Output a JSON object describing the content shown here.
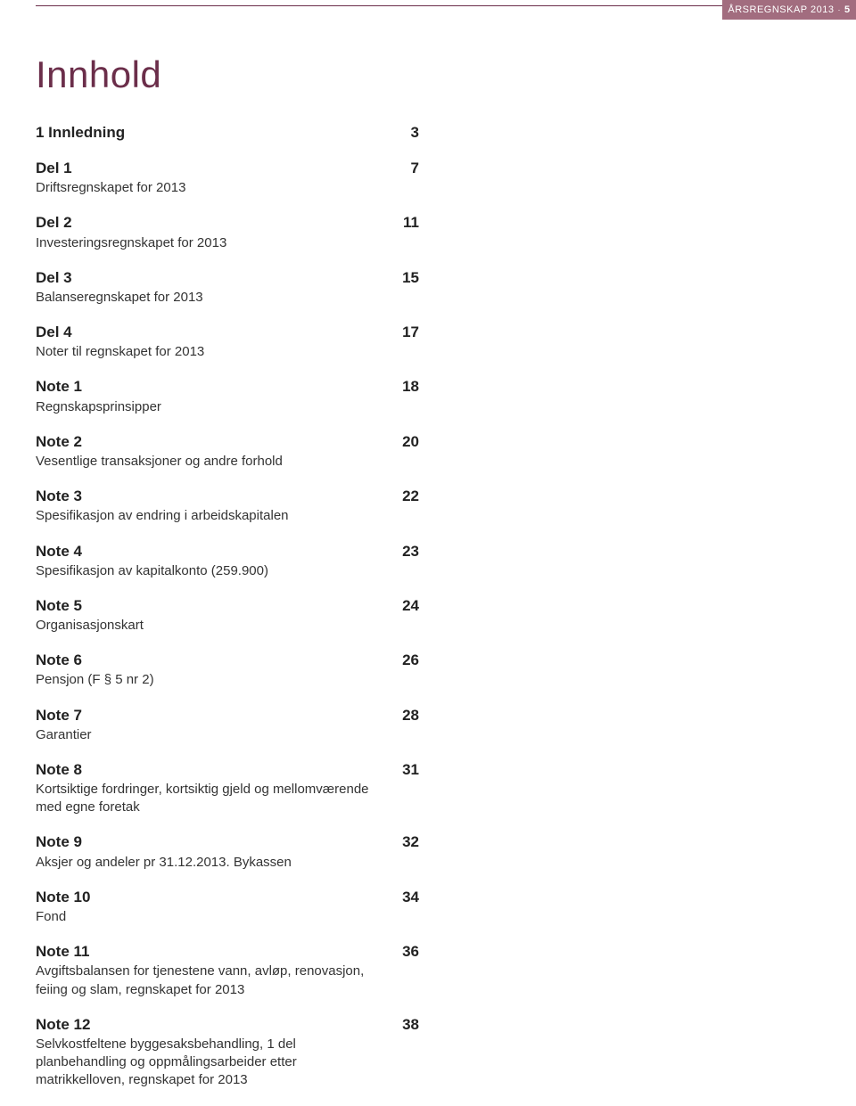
{
  "header": {
    "text": "ÅRSREGNSKAP 2013",
    "page_number": "5",
    "tab_bg": "#a26d7f",
    "tab_text_color": "#ffffff",
    "rule_color": "#6b2e4a"
  },
  "title": {
    "text": "Innhold",
    "color": "#6b2e4a",
    "fontsize": 42
  },
  "entries": [
    {
      "title": "1 Innledning",
      "sub": "",
      "page": "3"
    },
    {
      "title": "Del 1",
      "sub": "Driftsregnskapet for 2013",
      "page": "7"
    },
    {
      "title": "Del 2",
      "sub": "Investeringsregnskapet for 2013",
      "page": "11"
    },
    {
      "title": "Del 3",
      "sub": "Balanseregnskapet for 2013",
      "page": "15"
    },
    {
      "title": "Del 4",
      "sub": "Noter til regnskapet for 2013",
      "page": "17"
    },
    {
      "title": "Note 1",
      "sub": "Regnskapsprinsipper",
      "page": "18"
    },
    {
      "title": "Note 2",
      "sub": "Vesentlige transaksjoner og andre forhold",
      "page": "20"
    },
    {
      "title": "Note 3",
      "sub": "Spesifikasjon av endring i arbeidskapitalen",
      "page": "22"
    },
    {
      "title": "Note 4",
      "sub": "Spesifikasjon av kapitalkonto (259.900)",
      "page": "23"
    },
    {
      "title": "Note 5",
      "sub": "Organisasjonskart",
      "page": "24"
    },
    {
      "title": "Note 6",
      "sub": "Pensjon (F § 5 nr 2)",
      "page": "26"
    },
    {
      "title": "Note 7",
      "sub": "Garantier",
      "page": "28"
    },
    {
      "title": "Note 8",
      "sub": "Kortsiktige fordringer, kortsiktig gjeld og mellomværende med egne foretak",
      "page": "31"
    },
    {
      "title": "Note 9",
      "sub": "Aksjer og andeler pr 31.12.2013. Bykassen",
      "page": "32"
    },
    {
      "title": "Note 10",
      "sub": "Fond",
      "page": "34"
    },
    {
      "title": "Note 11",
      "sub": "Avgiftsbalansen for tjenestene vann, avløp, renovasjon, feiing og slam, regnskapet for 2013",
      "page": "36"
    },
    {
      "title": "Note 12",
      "sub": "Selvkostfeltene byggesaksbehandling, 1 del planbehandling og oppmålingsarbeider etter matrikkelloven, regnskapet for 2013",
      "page": "38"
    }
  ]
}
